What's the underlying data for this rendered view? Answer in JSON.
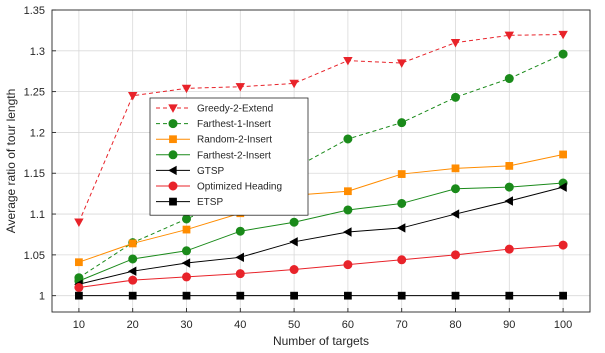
{
  "chart_data": {
    "type": "line",
    "xlabel": "Number of targets",
    "ylabel": "Average ratio of tour length",
    "xlim": [
      5,
      105
    ],
    "ylim": [
      0.98,
      1.35
    ],
    "x": [
      10,
      20,
      30,
      40,
      50,
      60,
      70,
      80,
      90,
      100
    ],
    "xticks": [
      "10",
      "20",
      "30",
      "40",
      "50",
      "60",
      "70",
      "80",
      "90",
      "100"
    ],
    "yticks": [
      "1",
      "1.05",
      "1.1",
      "1.15",
      "1.2",
      "1.25",
      "1.3",
      "1.35"
    ],
    "grid": true,
    "legend_position": "upper-left",
    "series": [
      {
        "name": "Greedy-2-Extend",
        "color": "#e8232a",
        "marker": "triangle-down",
        "line": "dashed",
        "values": [
          1.09,
          1.245,
          1.254,
          1.256,
          1.26,
          1.288,
          1.285,
          1.31,
          1.319,
          1.32
        ]
      },
      {
        "name": "Farthest-1-Insert",
        "color": "#1a8a1a",
        "marker": "circle",
        "line": "dashed",
        "values": [
          1.022,
          1.065,
          1.094,
          1.122,
          1.156,
          1.192,
          1.212,
          1.243,
          1.266,
          1.296
        ]
      },
      {
        "name": "Random-2-Insert",
        "color": "#ff8c00",
        "marker": "square",
        "line": "solid",
        "values": [
          1.041,
          1.064,
          1.081,
          1.101,
          1.123,
          1.128,
          1.149,
          1.156,
          1.159,
          1.173
        ]
      },
      {
        "name": "Farthest-2-Insert",
        "color": "#1a8a1a",
        "marker": "circle",
        "line": "solid",
        "values": [
          1.018,
          1.045,
          1.055,
          1.079,
          1.09,
          1.105,
          1.113,
          1.131,
          1.133,
          1.138
        ]
      },
      {
        "name": "GTSP",
        "color": "#000000",
        "marker": "triangle-left",
        "line": "solid",
        "values": [
          1.014,
          1.03,
          1.04,
          1.047,
          1.066,
          1.078,
          1.083,
          1.1,
          1.116,
          1.133
        ]
      },
      {
        "name": "Optimized Heading",
        "color": "#e8232a",
        "marker": "circle",
        "line": "solid",
        "values": [
          1.01,
          1.019,
          1.023,
          1.027,
          1.032,
          1.038,
          1.044,
          1.05,
          1.057,
          1.062
        ]
      },
      {
        "name": "ETSP",
        "color": "#000000",
        "marker": "square",
        "line": "solid",
        "values": [
          1.0,
          1.0,
          1.0,
          1.0,
          1.0,
          1.0,
          1.0,
          1.0,
          1.0,
          1.0
        ]
      }
    ]
  }
}
